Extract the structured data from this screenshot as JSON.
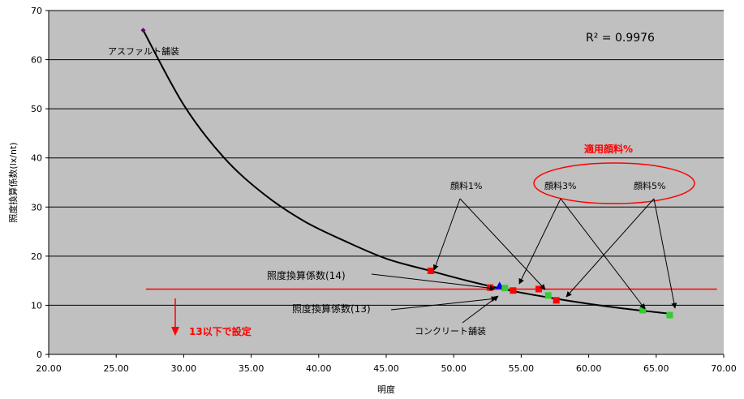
{
  "chart_data": {
    "type": "scatter",
    "xlabel": "明度",
    "ylabel": "照度換算係数(lx/nt)",
    "xlim": [
      20,
      70
    ],
    "ylim": [
      0,
      70
    ],
    "x_ticks": [
      "20.00",
      "25.00",
      "30.00",
      "35.00",
      "40.00",
      "45.00",
      "50.00",
      "55.00",
      "60.00",
      "65.00",
      "70.00"
    ],
    "y_ticks": [
      "0",
      "10",
      "20",
      "30",
      "40",
      "50",
      "60",
      "70"
    ],
    "grid": "horizontal",
    "plot_background": "#c0c0c0",
    "r_squared_label": "R² = 0.9976",
    "trendline": {
      "color": "#000000",
      "x": [
        27.0,
        30,
        33,
        36,
        39,
        42,
        45,
        48,
        51,
        54,
        57,
        60,
        63,
        66.0
      ],
      "y": [
        66.0,
        50.8,
        40.0,
        32.5,
        27.0,
        23.0,
        19.5,
        17.2,
        15.0,
        13.1,
        11.6,
        10.3,
        9.2,
        8.3
      ]
    },
    "threshold": {
      "y": 13.3,
      "color": "#ff0000",
      "x_start": 27.2,
      "x_end": 69.5
    },
    "series": [
      {
        "color": "#660066",
        "marker": "diamond",
        "points": [
          [
            27.0,
            66.0
          ]
        ]
      },
      {
        "color": "#ff0000",
        "marker": "square",
        "points": [
          [
            48.3,
            17.0
          ],
          [
            52.7,
            13.6
          ],
          [
            54.4,
            13.0
          ],
          [
            56.3,
            13.3
          ],
          [
            57.6,
            11.0
          ]
        ]
      },
      {
        "color": "#0000ff",
        "marker": "triangle",
        "points": [
          [
            53.4,
            14.0
          ]
        ]
      },
      {
        "color": "#33cc33",
        "marker": "square",
        "points": [
          [
            53.8,
            13.5
          ],
          [
            57.0,
            12.0
          ],
          [
            64.0,
            9.0
          ],
          [
            66.0,
            8.0
          ]
        ]
      }
    ],
    "annotations": {
      "asphalt": "アスファルト舗装",
      "concrete": "コンクリート舗装",
      "coef14": "照度換算係数(14)",
      "coef13": "照度換算係数(13)",
      "pig1": "顔料1%",
      "pig3": "顔料3%",
      "pig5": "顔料5%",
      "applied": "適用顔料%",
      "below13": "13以下で設定"
    }
  }
}
